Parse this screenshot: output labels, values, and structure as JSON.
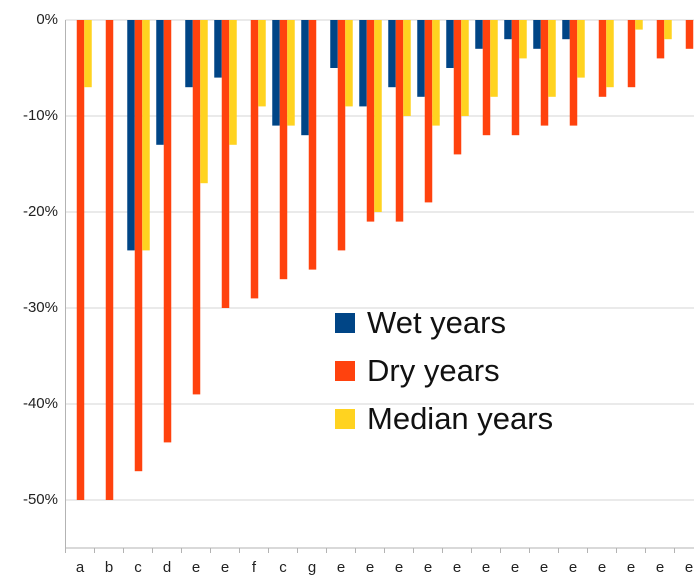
{
  "chart_data": {
    "type": "bar",
    "categories": [
      "a",
      "b",
      "c",
      "d",
      "e",
      "e",
      "f",
      "c",
      "g",
      "e",
      "e",
      "e",
      "e",
      "e",
      "e",
      "e",
      "e",
      "e",
      "e",
      "e",
      "e",
      "e"
    ],
    "series": [
      {
        "name": "Wet years",
        "color": "#004586",
        "values": [
          0,
          0,
          -24,
          -13,
          -7,
          -6,
          0,
          -11,
          -12,
          -5,
          -9,
          -7,
          -8,
          -5,
          -3,
          -2,
          -3,
          -2,
          0,
          0,
          0,
          0
        ]
      },
      {
        "name": "Dry years",
        "color": "#ff420e",
        "values": [
          -50,
          -50,
          -47,
          -44,
          -39,
          -30,
          -29,
          -27,
          -26,
          -24,
          -21,
          -21,
          -19,
          -14,
          -12,
          -12,
          -11,
          -11,
          -8,
          -7,
          -4,
          -3
        ]
      },
      {
        "name": "Median years",
        "color": "#ffd320",
        "values": [
          -7,
          0,
          -24,
          0,
          -17,
          -13,
          -9,
          -11,
          0,
          -9,
          -20,
          -10,
          -11,
          -10,
          -8,
          -4,
          -8,
          -6,
          -7,
          -1,
          -2,
          0
        ]
      }
    ],
    "ylim": [
      -55,
      0
    ],
    "yticks": [
      {
        "value": 0,
        "label": "0%"
      },
      {
        "value": -10,
        "label": "-10%"
      },
      {
        "value": -20,
        "label": "-20%"
      },
      {
        "value": -30,
        "label": "-30%"
      },
      {
        "value": -40,
        "label": "-40%"
      },
      {
        "value": -50,
        "label": "-50%"
      }
    ],
    "grid": true,
    "legend": "center"
  }
}
